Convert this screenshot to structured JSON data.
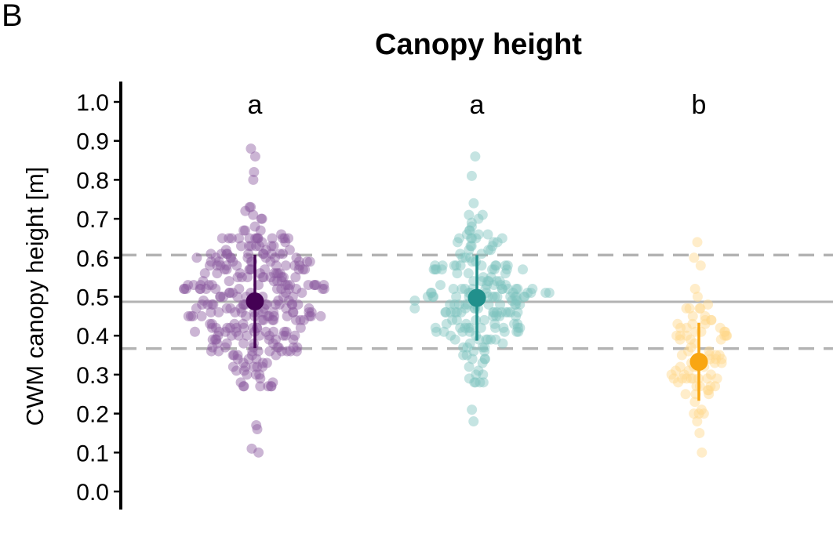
{
  "panel_label": "B",
  "chart_data": {
    "type": "scatter",
    "subtype": "beeswarm with mean and error bars",
    "title": "Canopy height",
    "xlabel": "",
    "ylabel": "CWM canopy height [m]",
    "ylim": [
      0.0,
      1.0
    ],
    "yticks": [
      "0.0",
      "0.1",
      "0.2",
      "0.3",
      "0.4",
      "0.5",
      "0.6",
      "0.7",
      "0.8",
      "0.9",
      "1.0"
    ],
    "reference_lines": {
      "overall_mean": 0.487,
      "lower": 0.367,
      "upper": 0.607
    },
    "colors": {
      "reference": "#b3b3b3",
      "axis": "#000000"
    },
    "groups": [
      {
        "letter": "a",
        "color": "#440154",
        "point_color": "#8b5a9f",
        "mean": 0.488,
        "lower": 0.368,
        "upper": 0.608,
        "n": 300,
        "extremes": [
          0.88,
          0.86,
          0.82,
          0.8,
          0.1,
          0.11,
          0.16,
          0.17
        ]
      },
      {
        "letter": "a",
        "color": "#21908c",
        "point_color": "#7ec3bf",
        "mean": 0.497,
        "lower": 0.387,
        "upper": 0.607,
        "n": 200,
        "extremes": [
          0.86,
          0.81,
          0.21,
          0.18,
          0.29
        ]
      },
      {
        "letter": "b",
        "color": "#f9a612",
        "point_color": "#ffd68a",
        "mean": 0.333,
        "lower": 0.233,
        "upper": 0.433,
        "n": 85,
        "extremes": [
          0.64,
          0.6,
          0.58,
          0.1,
          0.15
        ]
      }
    ]
  }
}
